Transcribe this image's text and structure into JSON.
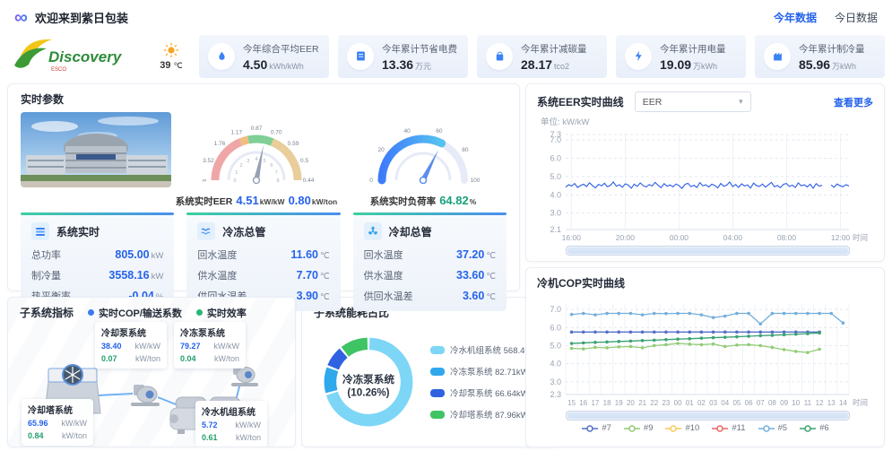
{
  "topbar": {
    "title": "欢迎来到紫日包装",
    "nav": [
      {
        "label": "今年数据"
      },
      {
        "label": "今日数据"
      }
    ]
  },
  "brand": {
    "name": "Discovery",
    "tagline": "ESCO",
    "temp": "39",
    "temp_unit": "℃"
  },
  "stat_cards": [
    {
      "icon": "water-drop-icon",
      "title": "今年综合平均EER",
      "value": "4.50",
      "unit": "kWh/kWh"
    },
    {
      "icon": "bill-icon",
      "title": "今年累计节省电费",
      "value": "13.36",
      "unit": "万元"
    },
    {
      "icon": "carbon-bag-icon",
      "title": "今年累计减碳量",
      "value": "28.17",
      "unit": "tco2"
    },
    {
      "icon": "lightning-icon",
      "title": "今年累计用电量",
      "value": "19.09",
      "unit": "万kWh"
    },
    {
      "icon": "cooling-icon",
      "title": "今年累计制冷量",
      "value": "85.96",
      "unit": "万kWh"
    }
  ],
  "realtime": {
    "title": "实时参数",
    "gauge_eer": {
      "label": "系统实时EER",
      "value1": "4.51",
      "unit1": "kW/kW",
      "value2": "0.80",
      "unit2": "kW/ton"
    },
    "gauge_load": {
      "label": "系统实时负荷率",
      "value": "64.82",
      "unit": "%"
    },
    "groups": [
      {
        "icon": "list-icon",
        "title": "系统实时",
        "rows": [
          {
            "label": "总功率",
            "value": "805.00",
            "unit": "kW"
          },
          {
            "label": "制冷量",
            "value": "3558.16",
            "unit": "kW"
          },
          {
            "label": "热平衡率",
            "value": "-0.04",
            "unit": "%"
          }
        ]
      },
      {
        "icon": "pipe-icon",
        "title": "冷冻总管",
        "rows": [
          {
            "label": "回水温度",
            "value": "11.60",
            "unit": "℃"
          },
          {
            "label": "供水温度",
            "value": "7.70",
            "unit": "℃"
          },
          {
            "label": "供回水温差",
            "value": "3.90",
            "unit": "℃"
          }
        ]
      },
      {
        "icon": "fan-icon",
        "title": "冷却总管",
        "rows": [
          {
            "label": "回水温度",
            "value": "37.20",
            "unit": "℃"
          },
          {
            "label": "供水温度",
            "value": "33.60",
            "unit": "℃"
          },
          {
            "label": "供回水温差",
            "value": "3.60",
            "unit": "℃"
          }
        ]
      }
    ]
  },
  "subsys": {
    "title": "子系统指标",
    "legend": [
      {
        "label": "实时COP/输送系数",
        "color": "#3A7BF0"
      },
      {
        "label": "实时效率",
        "color": "#2BB673"
      }
    ],
    "nodes": [
      {
        "name": "冷却泵系统",
        "cop": "38.40",
        "cop_unit": "kW/kW",
        "eff": "0.07",
        "eff_unit": "kW/ton"
      },
      {
        "name": "冷冻泵系统",
        "cop": "79.27",
        "cop_unit": "kW/kW",
        "eff": "0.04",
        "eff_unit": "kW/ton"
      },
      {
        "name": "冷却塔系统",
        "cop": "65.96",
        "cop_unit": "kW/kW",
        "eff": "0.84",
        "eff_unit": "kW/ton"
      },
      {
        "name": "冷水机组系统",
        "cop": "5.72",
        "cop_unit": "kW/kW",
        "eff": "0.61",
        "eff_unit": "kW/ton"
      }
    ]
  },
  "energy": {
    "title": "子系统能耗占比"
  },
  "eer_panel": {
    "title": "系统EER实时曲线",
    "select_value": "EER",
    "more_link": "查看更多",
    "unit_label": "单位: kW/kW"
  },
  "cop_panel": {
    "title": "冷机COP实时曲线"
  },
  "chart_data": [
    {
      "id": "eer_line",
      "type": "line",
      "title": "系统EER实时曲线",
      "ylabel": "单位: kW/kW",
      "xlabel": "时间",
      "ylim": [
        2.1,
        7.3
      ],
      "yticks": [
        "7.3",
        "7.0",
        "6.0",
        "5.0",
        "4.0",
        "3.0",
        "2.1"
      ],
      "xticks": [
        {
          "label": "16:00",
          "f": 0.02
        },
        {
          "label": "20:00",
          "f": 0.21
        },
        {
          "label": "00:00",
          "f": 0.4
        },
        {
          "label": "04:00",
          "f": 0.59
        },
        {
          "label": "08:00",
          "f": 0.78
        },
        {
          "label": "12:00",
          "f": 0.97
        }
      ],
      "series": [
        {
          "name": "EER",
          "color": "#2B5CE6",
          "values": [
            4.42,
            4.55,
            4.48,
            4.62,
            4.4,
            4.51,
            4.58,
            4.45,
            4.66,
            4.5,
            4.38,
            4.57,
            4.49,
            4.63,
            4.44,
            4.52,
            4.7,
            4.47,
            4.55,
            4.41,
            4.6,
            4.53,
            4.36,
            4.58,
            4.46,
            4.65,
            4.5,
            4.43,
            4.56,
            4.48,
            4.68,
            4.52,
            4.39,
            4.61,
            4.47,
            4.54,
            4.44,
            4.59,
            4.5,
            4.35,
            4.57,
            4.63,
            4.45,
            4.52,
            4.4,
            4.67,
            4.49,
            4.55,
            4.43,
            4.58,
            4.51,
            4.38,
            4.62,
            4.47,
            4.53,
            4.7,
            4.45,
            4.56,
            4.41,
            4.6,
            4.48,
            4.54,
            4.37,
            4.64,
            4.5,
            4.46,
            4.59,
            4.42,
            4.55,
            4.68,
            4.44,
            4.51,
            4.39,
            4.57,
            4.62,
            4.46,
            4.53,
            4.4,
            4.65,
            4.49,
            4.55,
            4.43,
            4.58,
            4.36,
            4.61,
            4.47,
            4.52,
            null,
            null,
            4.54,
            4.41,
            4.59,
            4.5,
            4.44,
            4.56,
            4.48
          ]
        }
      ]
    },
    {
      "id": "cop_line",
      "type": "line",
      "title": "冷机COP实时曲线",
      "xlabel": "时间",
      "ylim": [
        2.3,
        7.35
      ],
      "yticks": [
        "7.0",
        "6.0",
        "5.0",
        "4.0",
        "3.0",
        "2.3"
      ],
      "categories": [
        "15",
        "16",
        "17",
        "18",
        "19",
        "20",
        "21",
        "22",
        "23",
        "00",
        "01",
        "02",
        "03",
        "04",
        "05",
        "06",
        "07",
        "08",
        "09",
        "10",
        "11",
        "12",
        "13",
        "14"
      ],
      "legend": [
        {
          "label": "#7",
          "color": "#5470C6"
        },
        {
          "label": "#9",
          "color": "#91CC75"
        },
        {
          "label": "#10",
          "color": "#FAC858"
        },
        {
          "label": "#11",
          "color": "#EE6666"
        },
        {
          "label": "#5",
          "color": "#74AEDB"
        },
        {
          "label": "#6",
          "color": "#3BA272"
        }
      ],
      "series": [
        {
          "name": "#5",
          "color": "#74AEDB",
          "values": [
            6.72,
            6.78,
            6.7,
            6.78,
            6.78,
            6.78,
            6.7,
            6.78,
            6.77,
            6.78,
            6.78,
            6.7,
            6.55,
            6.63,
            6.78,
            6.78,
            6.2,
            6.78,
            6.78,
            6.78,
            6.78,
            6.78,
            6.78,
            6.25
          ]
        },
        {
          "name": "#7",
          "color": "#5470C6",
          "values": [
            5.75,
            5.75,
            5.75,
            5.75,
            5.75,
            5.75,
            5.75,
            5.75,
            5.75,
            5.75,
            5.75,
            5.75,
            5.75,
            5.75,
            5.75,
            5.75,
            5.75,
            5.75,
            5.75,
            5.75,
            5.75,
            5.75
          ]
        },
        {
          "name": "#6",
          "color": "#3BA272",
          "values": [
            5.12,
            5.15,
            5.18,
            5.2,
            5.23,
            5.25,
            5.28,
            5.3,
            5.33,
            5.36,
            5.38,
            5.41,
            5.44,
            5.46,
            5.49,
            5.52,
            5.55,
            5.57,
            5.6,
            5.63,
            5.66,
            5.7
          ]
        },
        {
          "name": "#9",
          "color": "#91CC75",
          "values": [
            4.85,
            4.82,
            4.9,
            4.88,
            4.93,
            4.95,
            4.88,
            5.0,
            5.05,
            5.12,
            5.08,
            5.05,
            5.09,
            4.95,
            5.03,
            5.05,
            5.0,
            4.9,
            4.78,
            4.68,
            4.62,
            4.8
          ]
        }
      ]
    },
    {
      "id": "energy_pie",
      "type": "pie",
      "center_label": "冷冻泵系统",
      "center_sub": "(10.26%)",
      "slices": [
        {
          "label": "冷水机组系统",
          "value": 568.49,
          "display": "冷水机组系统 568.49kW",
          "color": "#7DD6F6"
        },
        {
          "label": "冷冻泵系统",
          "value": 82.71,
          "display": "冷冻泵系统 82.71kW",
          "color": "#2FA8EC"
        },
        {
          "label": "冷却泵系统",
          "value": 66.64,
          "display": "冷却泵系统 66.64kW",
          "color": "#2E62E0"
        },
        {
          "label": "冷却塔系统",
          "value": 87.96,
          "display": "冷却塔系统 87.96kW",
          "color": "#3FC463"
        }
      ]
    },
    {
      "id": "gauge_eer",
      "type": "gauge",
      "min": 0,
      "max": 8,
      "value": 4.51,
      "inner_labels": [
        "0",
        "1",
        "2",
        "3",
        "4",
        "5",
        "6",
        "7",
        "8"
      ],
      "outer_labels": [
        "∞",
        "3.52",
        "1.76",
        "1.17",
        "0.87",
        "0.70",
        "0.59",
        "0.5",
        "0.44"
      ],
      "zones": [
        {
          "from": 0,
          "to": 3,
          "color": "#EFA6A6"
        },
        {
          "from": 3,
          "to": 3.5,
          "color": "#F2BD80"
        },
        {
          "from": 3.5,
          "to": 5,
          "color": "#7FCF96"
        },
        {
          "from": 5,
          "to": 8,
          "color": "#E9CD9B"
        }
      ]
    },
    {
      "id": "gauge_load",
      "type": "gauge",
      "min": 0,
      "max": 100,
      "value": 64.82,
      "outer_labels": [
        "0",
        "20",
        "40",
        "60",
        "80",
        "100"
      ],
      "arc_colors": [
        "#3E7BFA",
        "#55C3F0"
      ]
    }
  ]
}
